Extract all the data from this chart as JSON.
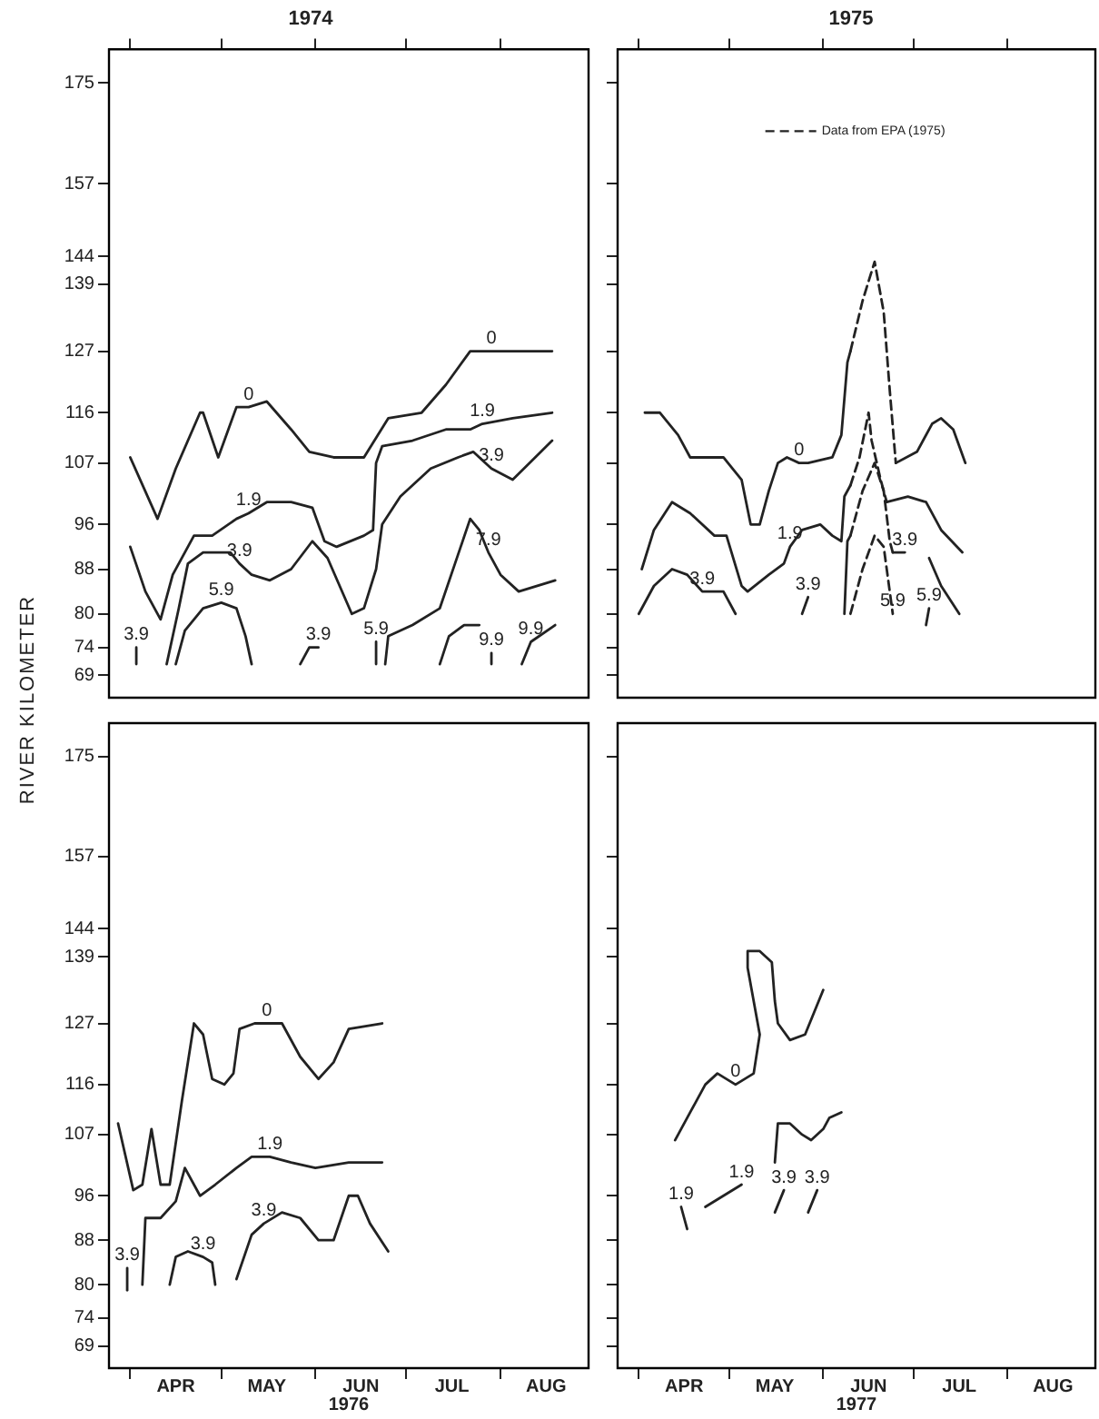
{
  "chart_data": [
    {
      "type": "line",
      "title": "1974",
      "ylabel": "RIVER KILOMETER",
      "marker": "none",
      "grid": false,
      "tick_labels": "y",
      "xlim": [
        "--03-25",
        "--08-30"
      ],
      "ylim": [
        65,
        181
      ],
      "xticks": [
        {
          "value": "--04-01",
          "label": null
        },
        {
          "value": "--05-01",
          "label": null
        },
        {
          "value": "--06-01",
          "label": null
        },
        {
          "value": "--07-01",
          "label": null
        },
        {
          "value": "--08-01",
          "label": null
        }
      ],
      "yticks": [
        69,
        74,
        80,
        88,
        96,
        107,
        116,
        127,
        139,
        144,
        157,
        175
      ],
      "series": [
        {
          "color": "#222222",
          "x": [
            "--04-01",
            "--04-10",
            "--04-16",
            "--04-24",
            "--04-25",
            "--04-30",
            "--05-06",
            "--05-10",
            "--05-16",
            "--05-24",
            "--05-30",
            "--06-07",
            "--06-17",
            "--06-25",
            "--07-06",
            "--07-14",
            "--07-22",
            "--07-29",
            "--08-05",
            "--08-18"
          ],
          "values": [
            108,
            97,
            106,
            116,
            116,
            108,
            117,
            117,
            118,
            113,
            109,
            108,
            108,
            115,
            116,
            121,
            127,
            127,
            127,
            127
          ]
        },
        {
          "color": "#222222",
          "x": [
            "--04-01",
            "--04-06",
            "--04-11",
            "--04-15",
            "--04-22",
            "--04-28",
            "--05-06",
            "--05-10",
            "--05-16",
            "--05-24",
            "--05-31",
            "--06-04",
            "--06-08",
            "--06-17",
            "--06-20",
            "--06-21",
            "--06-23",
            "--07-03",
            "--07-14",
            "--07-22",
            "--07-26",
            "--08-05",
            "--08-18"
          ],
          "values": [
            92,
            84,
            79,
            87,
            94,
            94,
            97,
            98,
            100,
            100,
            99,
            93,
            92,
            94,
            95,
            107,
            110,
            111,
            113,
            113,
            114,
            115,
            116
          ]
        },
        {
          "color": "#222222",
          "x": [
            "--04-13",
            "--04-17",
            "--04-20",
            "--04-25",
            "--05-04",
            "--05-07",
            "--05-11",
            "--05-17",
            "--05-24",
            "--05-31",
            "--06-05",
            "--06-13",
            "--06-17",
            "--06-21",
            "--06-23",
            "--06-29",
            "--07-09",
            "--07-18",
            "--07-23",
            "--07-29",
            "--08-05",
            "--08-18"
          ],
          "values": [
            71,
            81,
            89,
            91,
            91,
            89,
            87,
            86,
            88,
            93,
            90,
            80,
            81,
            88,
            96,
            101,
            106,
            108,
            109,
            106,
            104,
            111
          ]
        },
        {
          "color": "#222222",
          "x": [
            "--04-03",
            "--04-03"
          ],
          "values": [
            74,
            71
          ]
        },
        {
          "color": "#222222",
          "x": [
            "--05-27",
            "--05-30",
            "--06-02"
          ],
          "values": [
            71,
            74,
            74
          ]
        },
        {
          "color": "#222222",
          "x": [
            "--04-16",
            "--04-19",
            "--04-25",
            "--05-01",
            "--05-06",
            "--05-09",
            "--05-11"
          ],
          "values": [
            71,
            77,
            81,
            82,
            81,
            76,
            71
          ]
        },
        {
          "color": "#222222",
          "x": [
            "--06-21",
            "--06-21"
          ],
          "values": [
            75,
            71
          ]
        },
        {
          "color": "#222222",
          "x": [
            "--06-24",
            "--06-25",
            "--07-03",
            "--07-12",
            "--07-17",
            "--07-22",
            "--07-25",
            "--07-28",
            "--08-01",
            "--08-07",
            "--08-19"
          ],
          "values": [
            71,
            76,
            78,
            81,
            89,
            97,
            95,
            91,
            87,
            84,
            86
          ]
        },
        {
          "color": "#222222",
          "x": [
            "--07-12",
            "--07-15",
            "--07-20",
            "--07-25"
          ],
          "values": [
            71,
            76,
            78,
            78
          ]
        },
        {
          "color": "#222222",
          "x": [
            "--07-29",
            "--07-29"
          ],
          "values": [
            73,
            71
          ]
        },
        {
          "color": "#222222",
          "x": [
            "--08-08",
            "--08-11",
            "--08-19"
          ],
          "values": [
            71,
            75,
            78
          ]
        }
      ],
      "annotations": [
        {
          "text": "0",
          "x": "--05-10",
          "y": 117
        },
        {
          "text": "0",
          "x": "--07-29",
          "y": 127
        },
        {
          "text": "1.9",
          "x": "--05-10",
          "y": 98
        },
        {
          "text": "1.9",
          "x": "--07-26",
          "y": 114
        },
        {
          "text": "3.9",
          "x": "--05-07",
          "y": 89
        },
        {
          "text": "3.9",
          "x": "--07-29",
          "y": 106
        },
        {
          "text": "3.9",
          "x": "--04-03",
          "y": 74
        },
        {
          "text": "3.9",
          "x": "--06-02",
          "y": 74
        },
        {
          "text": "5.9",
          "x": "--05-01",
          "y": 82
        },
        {
          "text": "5.9",
          "x": "--06-21",
          "y": 75
        },
        {
          "text": "7.9",
          "x": "--07-28",
          "y": 91
        },
        {
          "text": "9.9",
          "x": "--07-29",
          "y": 73
        },
        {
          "text": "9.9",
          "x": "--08-11",
          "y": 75
        }
      ]
    },
    {
      "type": "line",
      "title": "1975",
      "marker": "none",
      "grid": false,
      "tick_labels": false,
      "legend": "top",
      "xlim": [
        "--03-25",
        "--08-30"
      ],
      "ylim": [
        65,
        181
      ],
      "xticks": [
        {
          "value": "--04-01",
          "label": null
        },
        {
          "value": "--05-01",
          "label": null
        },
        {
          "value": "--06-01",
          "label": null
        },
        {
          "value": "--07-01",
          "label": null
        },
        {
          "value": "--08-01",
          "label": null
        }
      ],
      "yticks": [
        69,
        74,
        80,
        88,
        96,
        107,
        116,
        127,
        139,
        144,
        157,
        175
      ],
      "series": [
        {
          "color": "#222222",
          "x": [
            "--04-03",
            "--04-08",
            "--04-14",
            "--04-18",
            "--04-29",
            "--05-05",
            "--05-08",
            "--05-11",
            "--05-14",
            "--05-17",
            "--05-20",
            "--05-24",
            "--05-27",
            "--06-04",
            "--06-07",
            "--06-09",
            "--06-10"
          ],
          "values": [
            116,
            116,
            112,
            108,
            108,
            104,
            96,
            96,
            102,
            107,
            108,
            107,
            107,
            108,
            112,
            125,
            127
          ]
        },
        {
          "color": "#222222",
          "x": [
            "--06-25",
            "--07-02",
            "--07-07",
            "--07-10",
            "--07-14",
            "--07-18"
          ],
          "values": [
            107,
            109,
            114,
            115,
            113,
            107
          ]
        },
        {
          "color": "#222222",
          "x": [
            "--04-02",
            "--04-06",
            "--04-12",
            "--04-18",
            "--04-26",
            "--04-30",
            "--05-05",
            "--05-07",
            "--05-14",
            "--05-19",
            "--05-21",
            "--05-25",
            "--05-31",
            "--06-04",
            "--06-07",
            "--06-08",
            "--06-10"
          ],
          "values": [
            88,
            95,
            100,
            98,
            94,
            94,
            85,
            84,
            87,
            89,
            92,
            95,
            96,
            94,
            93,
            101,
            103
          ]
        },
        {
          "color": "#222222",
          "x": [
            "--06-22",
            "--06-29",
            "--07-05",
            "--07-10",
            "--07-17"
          ],
          "values": [
            100,
            101,
            100,
            95,
            91
          ]
        },
        {
          "color": "#222222",
          "x": [
            "--04-01",
            "--04-06",
            "--04-12",
            "--04-17",
            "--04-22",
            "--04-29",
            "--05-03"
          ],
          "values": [
            80,
            85,
            88,
            87,
            84,
            84,
            80
          ]
        },
        {
          "color": "#222222",
          "x": [
            "--05-25",
            "--05-27"
          ],
          "values": [
            80,
            83
          ]
        },
        {
          "color": "#222222",
          "x": [
            "--06-08",
            "--06-09",
            "--06-10"
          ],
          "values": [
            80,
            93,
            94
          ]
        },
        {
          "color": "#222222",
          "x": [
            "--06-24",
            "--06-28"
          ],
          "values": [
            91,
            91
          ]
        },
        {
          "color": "#222222",
          "x": [
            "--07-06",
            "--07-10",
            "--07-16"
          ],
          "values": [
            90,
            85,
            80
          ]
        },
        {
          "color": "#222222",
          "x": [
            "--07-05",
            "--07-06"
          ],
          "values": [
            78,
            81
          ]
        },
        {
          "name": "Data from EPA (1975)",
          "color": "#222222",
          "line_style": "dashed",
          "x": [
            "--06-10",
            "--06-14",
            "--06-18",
            "--06-21",
            "--06-23",
            "--06-25"
          ],
          "values": [
            127,
            136,
            143,
            134,
            120,
            107
          ]
        },
        {
          "color": "#222222",
          "line_style": "dashed",
          "x": [
            "--06-10",
            "--06-13",
            "--06-16",
            "--06-17",
            "--06-20",
            "--06-22"
          ],
          "values": [
            103,
            108,
            116,
            111,
            104,
            100
          ]
        },
        {
          "color": "#222222",
          "line_style": "dashed",
          "x": [
            "--06-10",
            "--06-14",
            "--06-18",
            "--06-21",
            "--06-23",
            "--06-24"
          ],
          "values": [
            94,
            102,
            107,
            102,
            93,
            91
          ]
        },
        {
          "color": "#222222",
          "line_style": "dashed",
          "x": [
            "--06-10",
            "--06-14",
            "--06-18",
            "--06-21",
            "--06-23",
            "--06-24"
          ],
          "values": [
            80,
            88,
            94,
            92,
            84,
            80
          ]
        }
      ],
      "annotations": [
        {
          "text": "0",
          "x": "--05-24",
          "y": 107
        },
        {
          "text": "1.9",
          "x": "--05-21",
          "y": 92
        },
        {
          "text": "3.9",
          "x": "--04-22",
          "y": 84
        },
        {
          "text": "3.9",
          "x": "--05-27",
          "y": 83
        },
        {
          "text": "3.9",
          "x": "--06-28",
          "y": 91
        },
        {
          "text": "5.9",
          "x": "--06-24",
          "y": 80
        },
        {
          "text": "5.9",
          "x": "--07-06",
          "y": 81
        }
      ]
    },
    {
      "type": "line",
      "xlabel": "1976",
      "marker": "none",
      "grid": false,
      "xlim": [
        "--03-25",
        "--08-30"
      ],
      "ylim": [
        65,
        181
      ],
      "xticks": [
        {
          "value": "--04-01",
          "label": null
        },
        {
          "value": "--04-16",
          "label": "APR"
        },
        {
          "value": "--05-01",
          "label": null
        },
        {
          "value": "--05-16",
          "label": "MAY"
        },
        {
          "value": "--06-01",
          "label": null
        },
        {
          "value": "--06-16",
          "label": "JUN"
        },
        {
          "value": "--07-01",
          "label": null
        },
        {
          "value": "--07-16",
          "label": "JUL"
        },
        {
          "value": "--08-01",
          "label": null
        },
        {
          "value": "--08-16",
          "label": "AUG"
        }
      ],
      "yticks": [
        69,
        74,
        80,
        88,
        96,
        107,
        116,
        127,
        139,
        144,
        157,
        175
      ],
      "series": [
        {
          "color": "#222222",
          "x": [
            "--03-28",
            "--04-02",
            "--04-05",
            "--04-08",
            "--04-11",
            "--04-14",
            "--04-18",
            "--04-22",
            "--04-25",
            "--04-28",
            "--05-02",
            "--05-05",
            "--05-07",
            "--05-12",
            "--05-16",
            "--05-21",
            "--05-27",
            "--06-02",
            "--06-07",
            "--06-12",
            "--06-23"
          ],
          "values": [
            109,
            97,
            98,
            108,
            98,
            98,
            113,
            127,
            125,
            117,
            116,
            118,
            126,
            127,
            127,
            127,
            121,
            117,
            120,
            126,
            127
          ]
        },
        {
          "color": "#222222",
          "x": [
            "--04-05",
            "--04-06",
            "--04-11",
            "--04-16",
            "--04-19",
            "--04-24",
            "--04-29",
            "--05-06",
            "--05-11",
            "--05-17",
            "--05-24",
            "--06-01",
            "--06-12",
            "--06-23"
          ],
          "values": [
            80,
            92,
            92,
            95,
            101,
            96,
            98,
            101,
            103,
            103,
            102,
            101,
            102,
            102
          ]
        },
        {
          "color": "#222222",
          "x": [
            "--04-14",
            "--04-16",
            "--04-20",
            "--04-25",
            "--04-28",
            "--04-29"
          ],
          "values": [
            80,
            85,
            86,
            85,
            84,
            80
          ]
        },
        {
          "color": "#222222",
          "x": [
            "--05-06",
            "--05-11",
            "--05-15",
            "--05-21",
            "--05-27",
            "--06-02",
            "--06-07",
            "--06-12",
            "--06-15",
            "--06-19",
            "--06-25"
          ],
          "values": [
            81,
            89,
            91,
            93,
            92,
            88,
            88,
            96,
            96,
            91,
            86
          ]
        },
        {
          "color": "#222222",
          "x": [
            "--03-31",
            "--03-31"
          ],
          "values": [
            79,
            83
          ]
        }
      ],
      "annotations": [
        {
          "text": "0",
          "x": "--05-16",
          "y": 127
        },
        {
          "text": "1.9",
          "x": "--05-17",
          "y": 103
        },
        {
          "text": "3.9",
          "x": "--05-15",
          "y": 91
        },
        {
          "text": "3.9",
          "x": "--04-25",
          "y": 85
        },
        {
          "text": "3.9",
          "x": "--03-31",
          "y": 83
        }
      ]
    },
    {
      "type": "line",
      "xlabel": "1977",
      "marker": "none",
      "grid": false,
      "tick_labels": "x",
      "xlim": [
        "--03-25",
        "--08-30"
      ],
      "ylim": [
        65,
        181
      ],
      "xticks": [
        {
          "value": "--04-01",
          "label": null
        },
        {
          "value": "--04-16",
          "label": "APR"
        },
        {
          "value": "--05-01",
          "label": null
        },
        {
          "value": "--05-16",
          "label": "MAY"
        },
        {
          "value": "--06-01",
          "label": null
        },
        {
          "value": "--06-16",
          "label": "JUN"
        },
        {
          "value": "--07-01",
          "label": null
        },
        {
          "value": "--07-16",
          "label": "JUL"
        },
        {
          "value": "--08-01",
          "label": null
        },
        {
          "value": "--08-16",
          "label": "AUG"
        }
      ],
      "yticks": [
        69,
        74,
        80,
        88,
        96,
        107,
        116,
        127,
        139,
        144,
        157,
        175
      ],
      "series": [
        {
          "color": "#222222",
          "x": [
            "--04-13",
            "--04-18",
            "--04-23",
            "--04-27",
            "--05-03",
            "--05-09",
            "--05-11",
            "--05-09",
            "--05-07",
            "--05-07",
            "--05-11",
            "--05-15",
            "--05-16",
            "--05-17",
            "--05-21",
            "--05-26",
            "--05-29",
            "--06-01"
          ],
          "values": [
            106,
            111,
            116,
            118,
            116,
            118,
            125,
            131,
            137,
            140,
            140,
            138,
            131,
            127,
            124,
            125,
            129,
            133
          ]
        },
        {
          "color": "#222222",
          "x": [
            "--04-23",
            "--05-05"
          ],
          "values": [
            94,
            98
          ]
        },
        {
          "color": "#222222",
          "x": [
            "--05-16",
            "--05-17",
            "--05-21",
            "--05-25",
            "--05-28",
            "--06-01",
            "--06-03",
            "--06-07"
          ],
          "values": [
            102,
            109,
            109,
            107,
            106,
            108,
            110,
            111
          ]
        },
        {
          "color": "#222222",
          "x": [
            "--04-15",
            "--04-17"
          ],
          "values": [
            94,
            90
          ]
        },
        {
          "color": "#222222",
          "x": [
            "--05-16",
            "--05-19"
          ],
          "values": [
            93,
            97
          ]
        },
        {
          "color": "#222222",
          "x": [
            "--05-27",
            "--05-30"
          ],
          "values": [
            93,
            97
          ]
        }
      ],
      "annotations": [
        {
          "text": "0",
          "x": "--05-03",
          "y": 116
        },
        {
          "text": "1.9",
          "x": "--05-05",
          "y": 98
        },
        {
          "text": "1.9",
          "x": "--04-15",
          "y": 94
        },
        {
          "text": "3.9",
          "x": "--05-19",
          "y": 97
        },
        {
          "text": "3.9",
          "x": "--05-30",
          "y": 97
        }
      ]
    }
  ]
}
